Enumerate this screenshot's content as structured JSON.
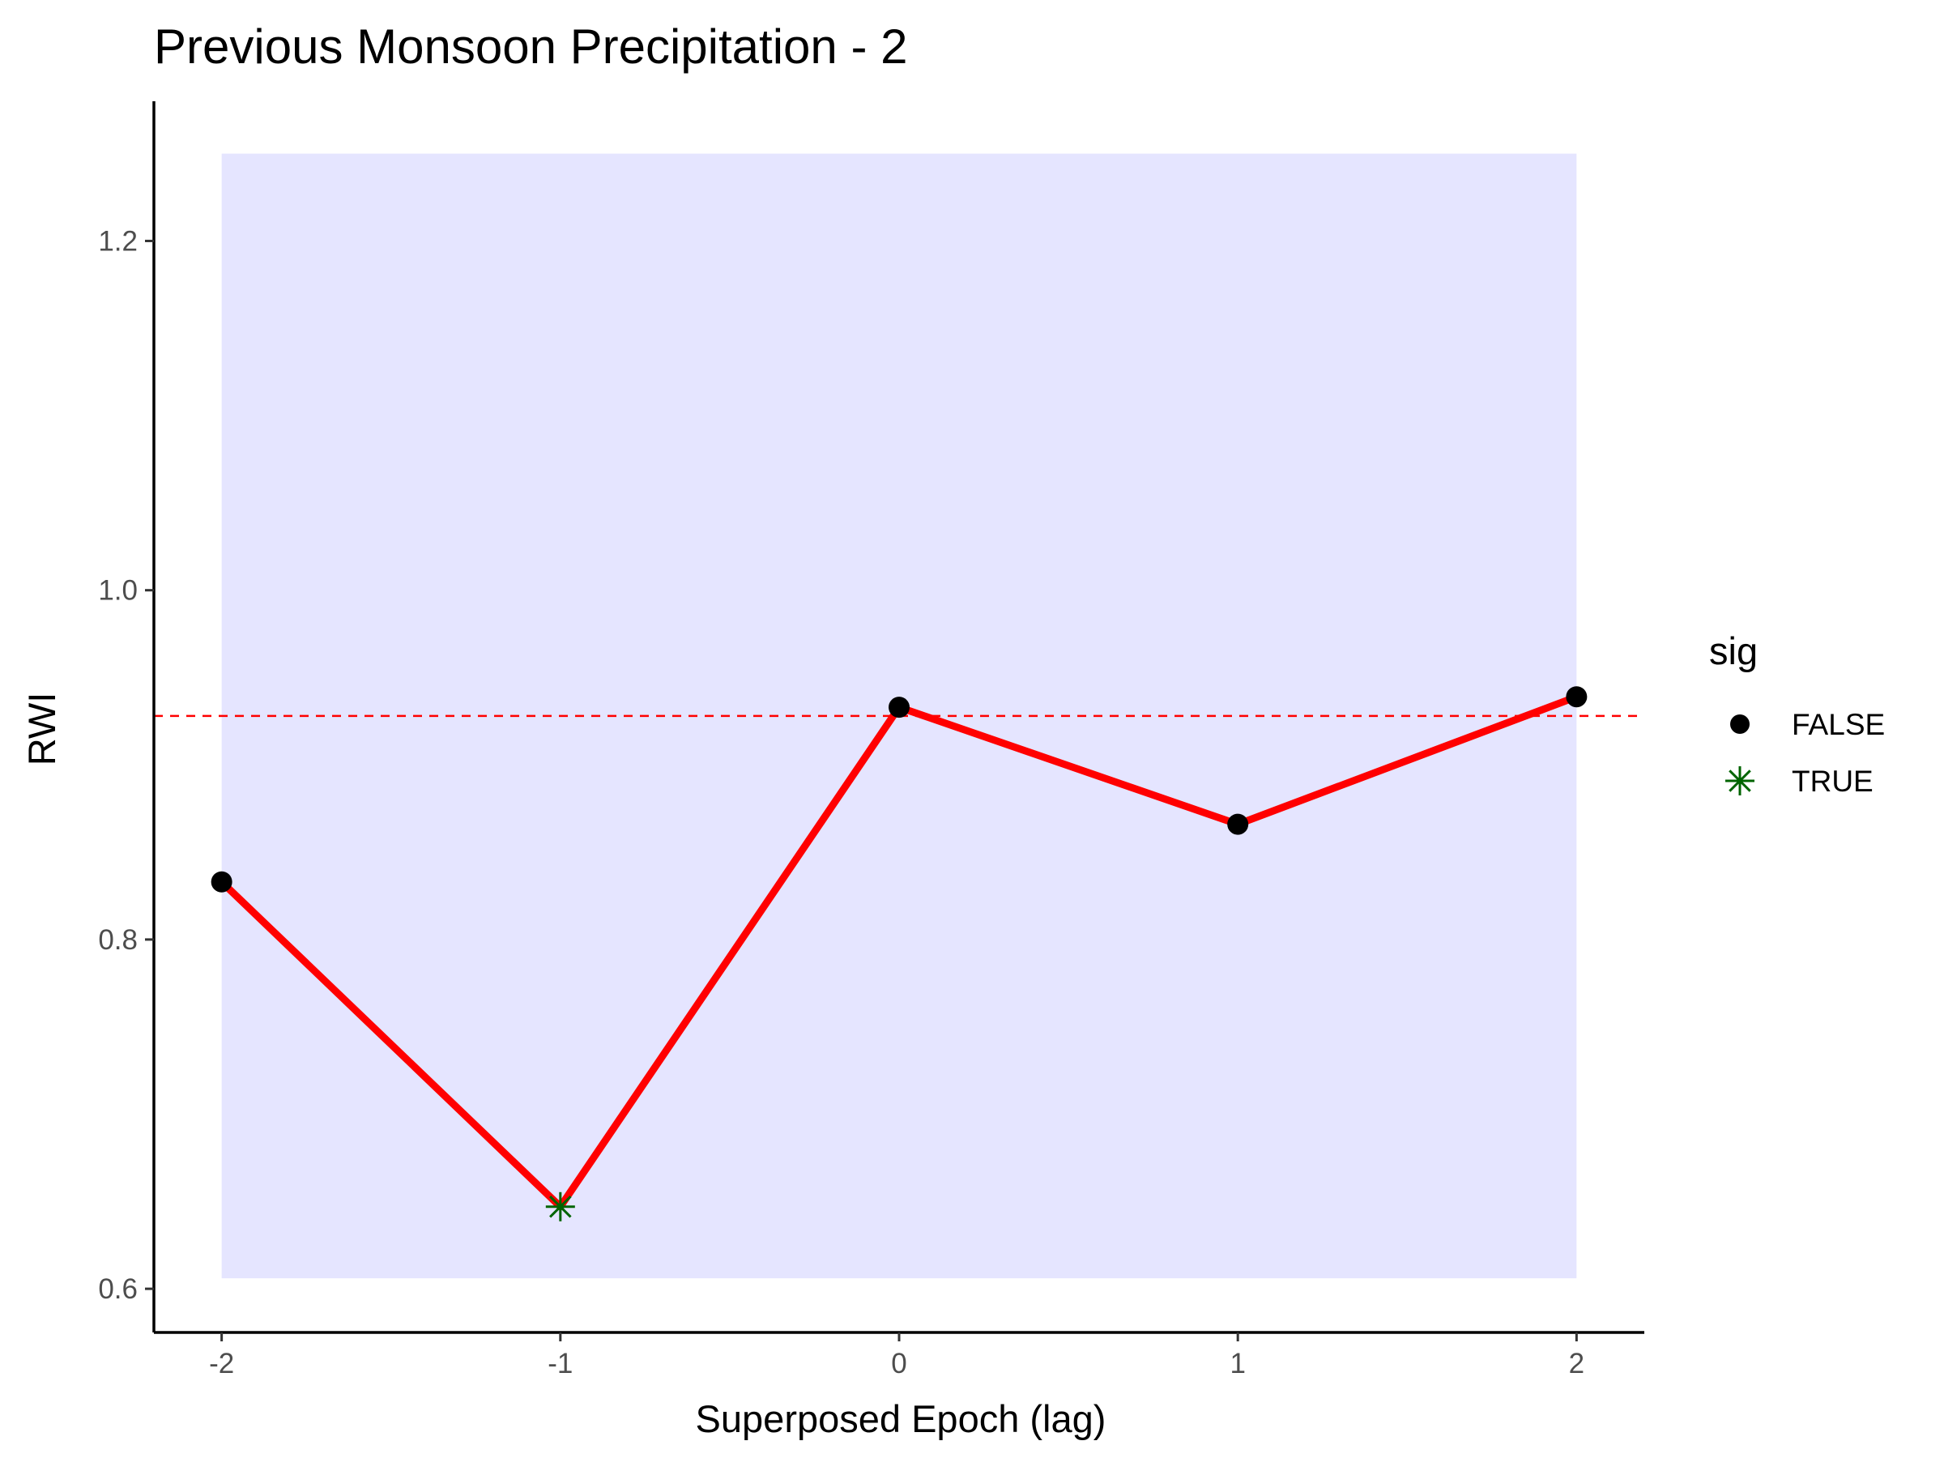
{
  "chart_data": {
    "type": "line",
    "title": "Previous Monsoon Precipitation - 2",
    "xlabel": "Superposed Epoch (lag)",
    "ylabel": "RWI",
    "x": [
      -2,
      -1,
      0,
      1,
      2
    ],
    "x_tick_labels": [
      "-2",
      "-1",
      "0",
      "1",
      "2"
    ],
    "y_ticks": [
      0.6,
      0.8,
      1.0,
      1.2
    ],
    "y_tick_labels": [
      "0.6",
      "0.8",
      "1.0",
      "1.2"
    ],
    "xlim": [
      -2.2,
      2.2
    ],
    "ylim": [
      0.575,
      1.28
    ],
    "series": [
      {
        "values": [
          0.833,
          0.647,
          0.933,
          0.866,
          0.939
        ],
        "sig": [
          false,
          true,
          false,
          false,
          false
        ],
        "line_color": "#ff0000"
      }
    ],
    "confidence_band": {
      "x": [
        -2,
        2
      ],
      "lower": 0.606,
      "upper": 1.25,
      "color": "#e5e5ff"
    },
    "reference_line": {
      "y": 0.928,
      "color": "#ff0000",
      "style": "dashed"
    },
    "legend": {
      "title": "sig",
      "placement": "right",
      "entries": [
        {
          "label": "FALSE",
          "marker": "circle",
          "color": "#000000"
        },
        {
          "label": "TRUE",
          "marker": "asterisk",
          "color": "#006400"
        }
      ]
    },
    "grid": false
  }
}
